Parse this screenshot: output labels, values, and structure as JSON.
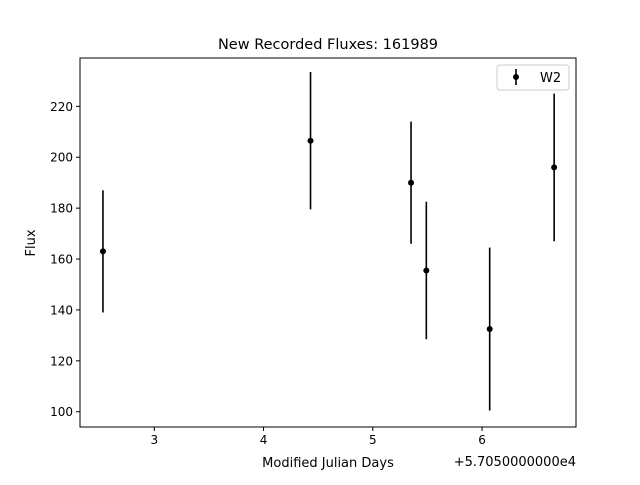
{
  "chart_data": {
    "type": "scatter",
    "title": "New Recorded Fluxes: 161989",
    "xlabel": "Modified Julian Days",
    "ylabel": "Flux",
    "x_offset_label": "+5.7050000000e4",
    "xlim": [
      57052.32,
      57056.86
    ],
    "ylim": [
      94,
      239
    ],
    "xticks": [
      {
        "value": 57053,
        "label": "3"
      },
      {
        "value": 57054,
        "label": "4"
      },
      {
        "value": 57055,
        "label": "5"
      },
      {
        "value": 57056,
        "label": "6"
      }
    ],
    "yticks": [
      {
        "value": 100,
        "label": "100"
      },
      {
        "value": 120,
        "label": "120"
      },
      {
        "value": 140,
        "label": "140"
      },
      {
        "value": 160,
        "label": "160"
      },
      {
        "value": 180,
        "label": "180"
      },
      {
        "value": 200,
        "label": "200"
      },
      {
        "value": 220,
        "label": "220"
      }
    ],
    "grid": false,
    "legend_position": "top-right",
    "series": [
      {
        "name": "W2",
        "color": "#000000",
        "points": [
          {
            "x": 57052.53,
            "y": 163,
            "yerr": 24
          },
          {
            "x": 57054.43,
            "y": 206.5,
            "yerr": 27
          },
          {
            "x": 57055.35,
            "y": 190,
            "yerr": 24
          },
          {
            "x": 57055.49,
            "y": 155.5,
            "yerr": 27
          },
          {
            "x": 57056.07,
            "y": 132.5,
            "yerr": 32
          },
          {
            "x": 57056.66,
            "y": 196,
            "yerr": 29
          }
        ]
      }
    ]
  }
}
